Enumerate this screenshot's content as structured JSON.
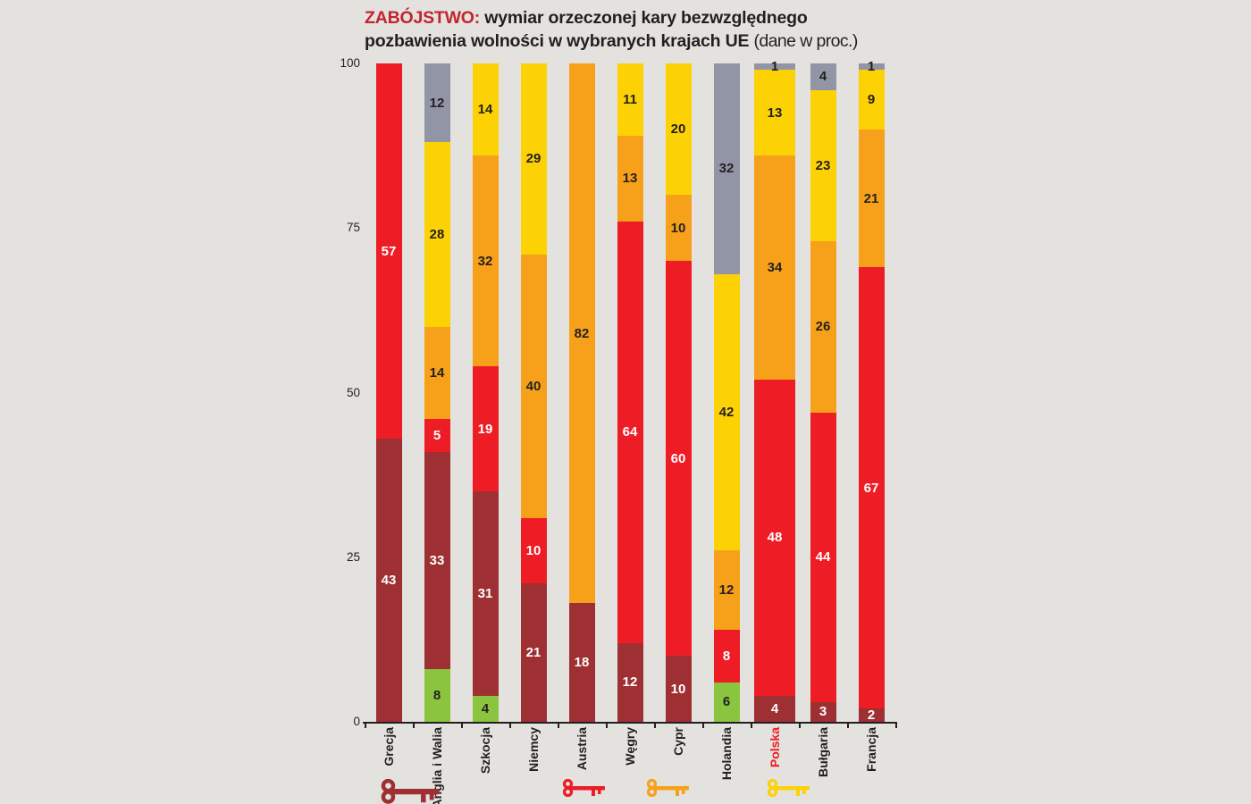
{
  "title": {
    "keyword": "ZABÓJSTWO:",
    "line1_rest": " wymiar orzeczonej kary bezwzględnego",
    "line2_bold": "pozbawienia wolności w wybranych krajach UE ",
    "line2_note": "(dane w proc.)"
  },
  "chart_data": {
    "type": "stacked-bar",
    "title": "ZABÓJSTWO: wymiar orzeczonej kary bezwzględnego pozbawienia wolności w wybranych krajach UE (dane w proc.)",
    "unit": "percent",
    "ylim": [
      0,
      100
    ],
    "y_ticks": [
      0,
      25,
      50,
      75,
      100
    ],
    "grid": false,
    "categories": [
      "Grecja",
      "Anglia i Walia",
      "Szkocja",
      "Niemcy",
      "Austria",
      "Węgry",
      "Cypr",
      "Holandia",
      "Polska",
      "Bułgaria",
      "Francja"
    ],
    "highlighted_category": "Polska",
    "stack_order": [
      "green",
      "maroon",
      "red",
      "orange",
      "yellow",
      "gray"
    ],
    "colors": {
      "green": "#8bc540",
      "maroon": "#9e3033",
      "red": "#ee1c25",
      "orange": "#f7a11a",
      "yellow": "#fdd205",
      "gray": "#9295a6"
    },
    "label_text_colors": {
      "green": "#231f20",
      "maroon": "#ffffff",
      "red": "#ffffff",
      "orange": "#231f20",
      "yellow": "#231f20",
      "gray": "#231f20"
    },
    "series": [
      {
        "name": "green",
        "values": [
          0,
          8,
          4,
          0,
          0,
          0,
          0,
          6,
          0,
          0,
          0
        ]
      },
      {
        "name": "maroon",
        "values": [
          43,
          33,
          31,
          21,
          18,
          12,
          10,
          0,
          4,
          3,
          2
        ]
      },
      {
        "name": "red",
        "values": [
          57,
          5,
          19,
          10,
          0,
          64,
          60,
          8,
          48,
          44,
          67
        ]
      },
      {
        "name": "orange",
        "values": [
          0,
          14,
          32,
          40,
          82,
          13,
          10,
          12,
          34,
          26,
          21
        ]
      },
      {
        "name": "yellow",
        "values": [
          0,
          28,
          14,
          29,
          0,
          11,
          20,
          42,
          13,
          23,
          9
        ]
      },
      {
        "name": "gray",
        "values": [
          0,
          12,
          0,
          0,
          0,
          0,
          0,
          32,
          1,
          4,
          1
        ]
      }
    ],
    "legend_position": "bottom"
  },
  "legend": {
    "keys": [
      {
        "name": "key-dark-red",
        "color": "#9e3033"
      },
      {
        "name": "key-red",
        "color": "#ee1c25"
      },
      {
        "name": "key-orange",
        "color": "#f7a11a"
      },
      {
        "name": "key-yellow",
        "color": "#fdd205"
      }
    ]
  },
  "page": {
    "background": "#e4e2de",
    "title_accent": "#c3242e"
  }
}
